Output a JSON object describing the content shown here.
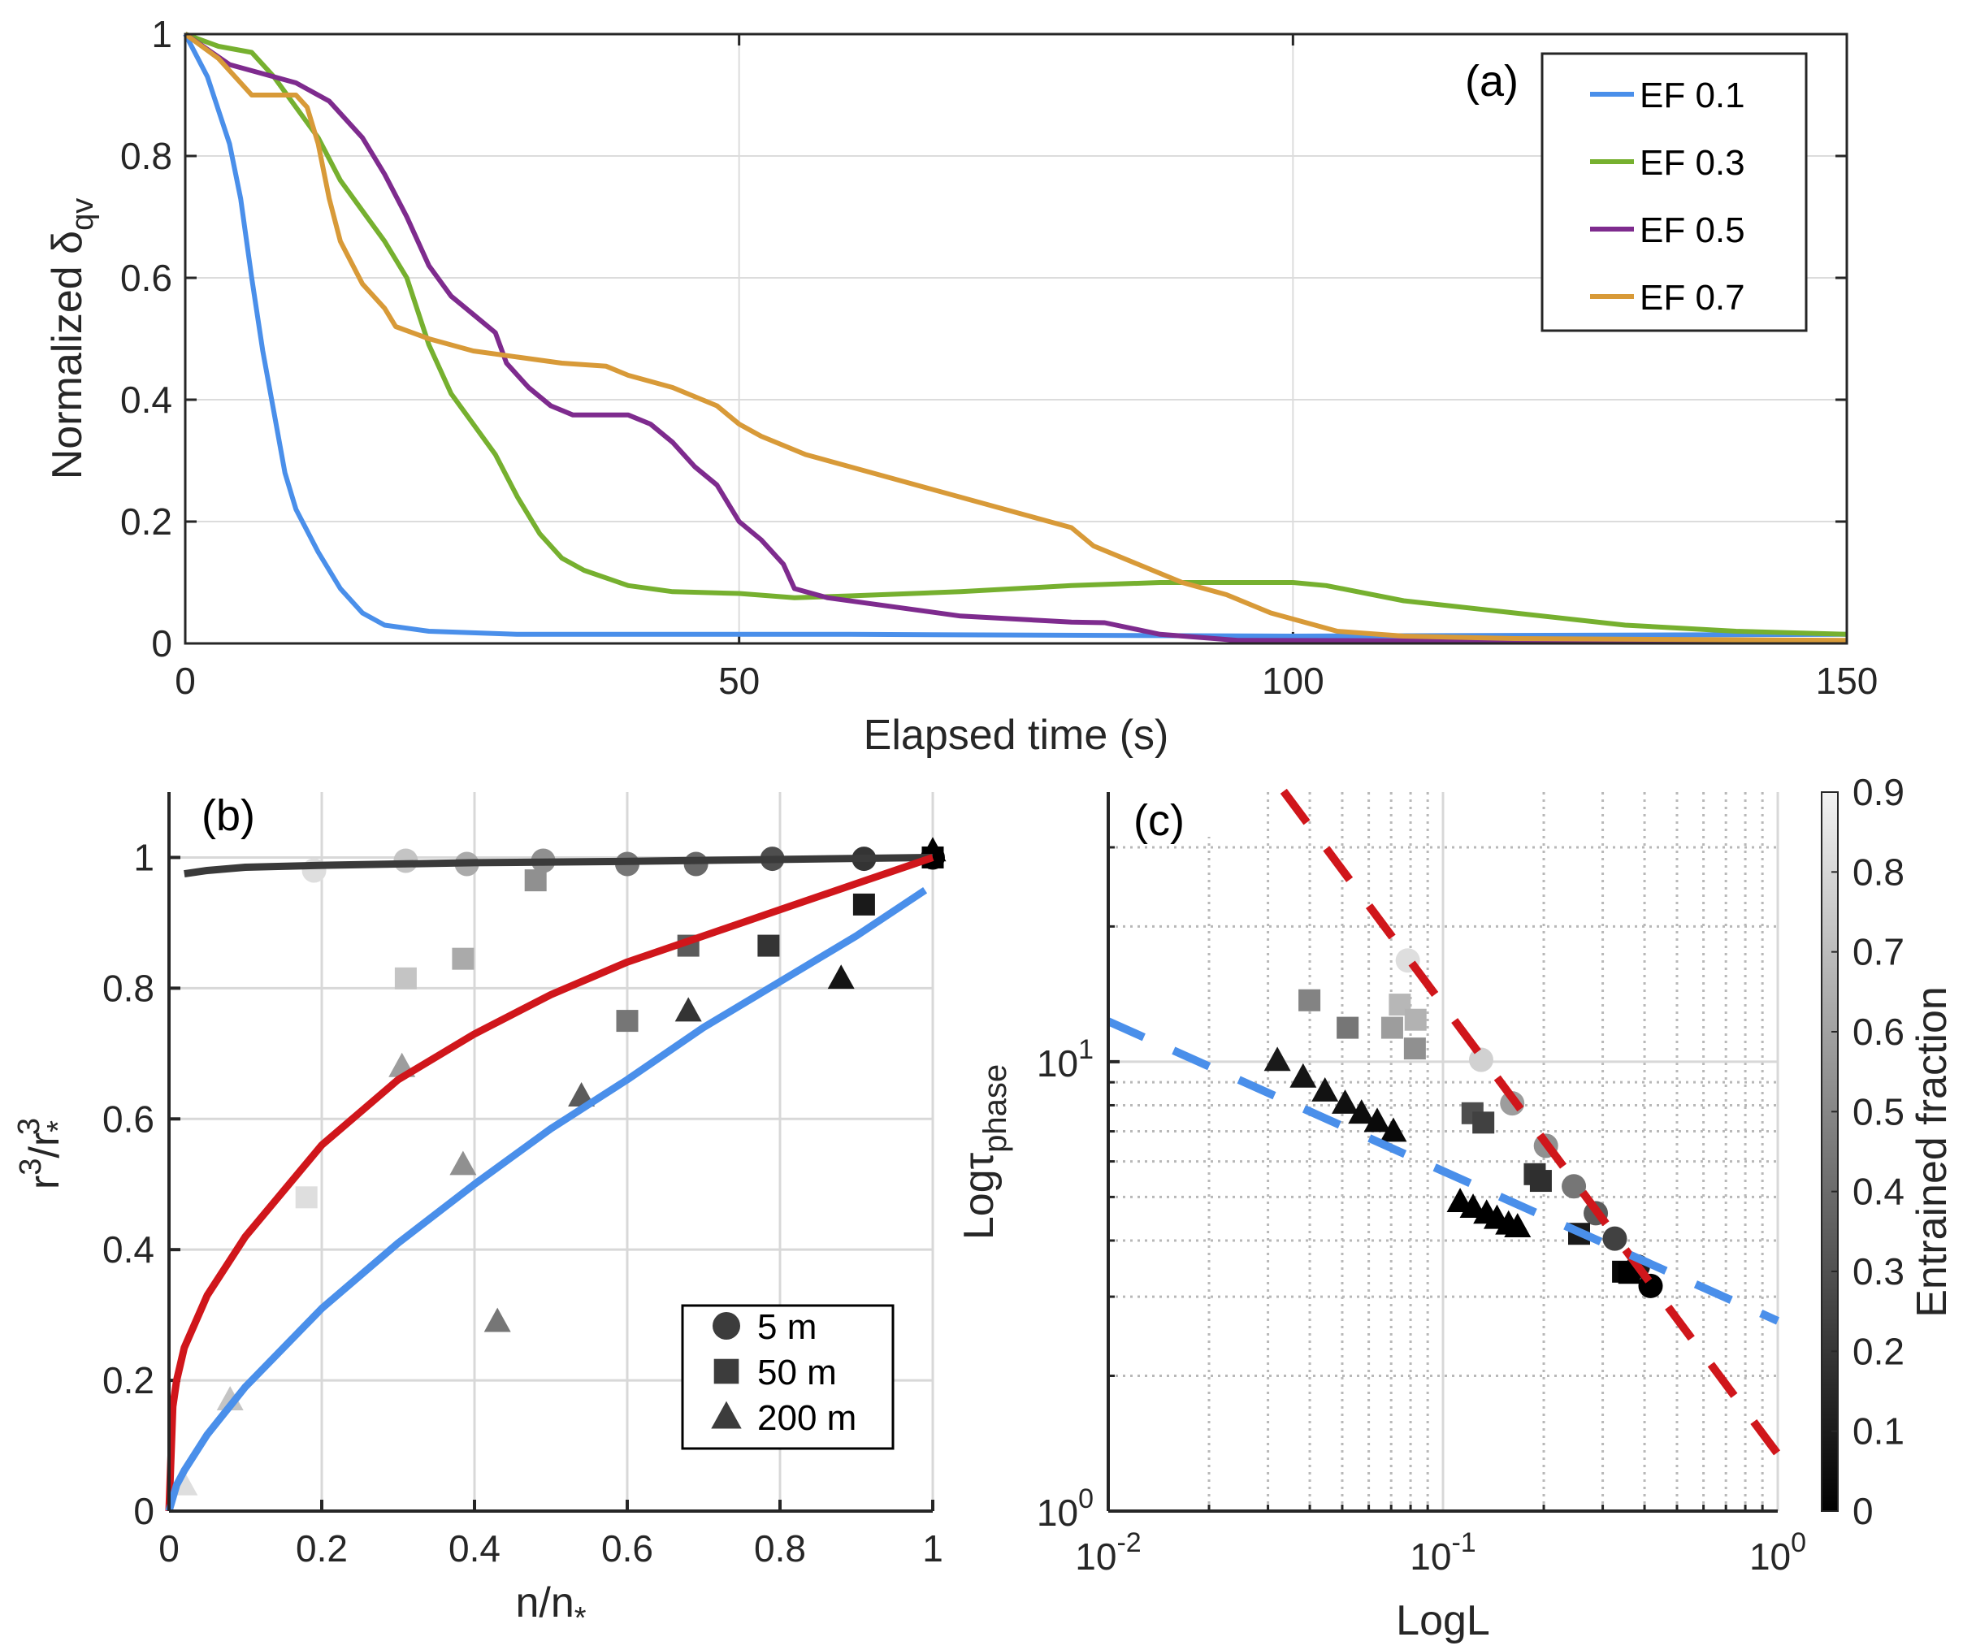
{
  "chart_data": [
    {
      "type": "line",
      "panel_label": "(a)",
      "xlabel": "Elapsed time (s)",
      "ylabel_main": "Normalized  δ",
      "ylabel_sub": "qv",
      "xlim": [
        0,
        150
      ],
      "ylim": [
        0,
        1
      ],
      "xticks": [
        0,
        50,
        100,
        150
      ],
      "xtick_labels": [
        "0",
        "50",
        "100",
        "150"
      ],
      "yticks": [
        0,
        0.2,
        0.4,
        0.6,
        0.8,
        1
      ],
      "ytick_labels": [
        "0",
        "0.2",
        "0.4",
        "0.6",
        "0.8",
        "1"
      ],
      "grid": true,
      "legend_position": "top-right",
      "series": [
        {
          "name": "EF 0.1",
          "color": "#4A8FEA",
          "x": [
            0,
            2,
            4,
            5,
            6,
            7,
            8,
            9,
            10,
            12,
            14,
            16,
            18,
            22,
            30,
            60,
            100,
            150
          ],
          "y": [
            1,
            0.93,
            0.82,
            0.73,
            0.6,
            0.48,
            0.38,
            0.28,
            0.22,
            0.15,
            0.09,
            0.05,
            0.03,
            0.02,
            0.015,
            0.015,
            0.012,
            0.015
          ]
        },
        {
          "name": "EF 0.3",
          "color": "#76B02F",
          "x": [
            0,
            3,
            6,
            8,
            10,
            12,
            14,
            16,
            18,
            20,
            22,
            24,
            26,
            28,
            30,
            32,
            34,
            36,
            40,
            44,
            50,
            55,
            60,
            70,
            80,
            88,
            100,
            103,
            110,
            120,
            130,
            140,
            150
          ],
          "y": [
            1,
            0.98,
            0.97,
            0.93,
            0.88,
            0.83,
            0.76,
            0.71,
            0.66,
            0.6,
            0.49,
            0.41,
            0.36,
            0.31,
            0.24,
            0.18,
            0.14,
            0.12,
            0.095,
            0.085,
            0.082,
            0.075,
            0.078,
            0.085,
            0.095,
            0.1,
            0.1,
            0.095,
            0.07,
            0.05,
            0.03,
            0.02,
            0.015
          ]
        },
        {
          "name": "EF 0.5",
          "color": "#7E2B8E",
          "x": [
            0,
            4,
            8,
            10,
            13,
            16,
            18,
            20,
            22,
            24,
            26,
            28,
            29,
            31,
            33,
            35,
            40,
            42,
            44,
            46,
            48,
            50,
            52,
            54,
            55,
            58,
            62,
            70,
            80,
            83,
            88,
            95,
            150
          ],
          "y": [
            1,
            0.95,
            0.93,
            0.92,
            0.89,
            0.83,
            0.77,
            0.7,
            0.62,
            0.57,
            0.54,
            0.51,
            0.46,
            0.42,
            0.39,
            0.375,
            0.375,
            0.36,
            0.33,
            0.29,
            0.26,
            0.2,
            0.17,
            0.13,
            0.09,
            0.075,
            0.065,
            0.045,
            0.035,
            0.034,
            0.015,
            0.005,
            0.003
          ]
        },
        {
          "name": "EF 0.7",
          "color": "#D89A38",
          "x": [
            0,
            3,
            5,
            6,
            8,
            10,
            11,
            12,
            13,
            14,
            16,
            18,
            19,
            22,
            26,
            30,
            34,
            38,
            40,
            44,
            48,
            50,
            52,
            56,
            60,
            64,
            70,
            76,
            80,
            82,
            86,
            90,
            94,
            98,
            104,
            110,
            120,
            150
          ],
          "y": [
            1,
            0.96,
            0.92,
            0.9,
            0.9,
            0.9,
            0.88,
            0.82,
            0.73,
            0.66,
            0.59,
            0.55,
            0.52,
            0.5,
            0.48,
            0.47,
            0.46,
            0.455,
            0.44,
            0.42,
            0.39,
            0.36,
            0.34,
            0.31,
            0.29,
            0.27,
            0.24,
            0.21,
            0.19,
            0.16,
            0.13,
            0.1,
            0.08,
            0.05,
            0.02,
            0.012,
            0.008,
            0.005
          ]
        }
      ]
    },
    {
      "type": "scatter",
      "panel_label": "(b)",
      "xlabel_main": "n/n",
      "xlabel_sub": "*",
      "ylabel_main": "r",
      "ylabel_sup1": "3",
      "ylabel_mid": "/r",
      "ylabel_sub": "*",
      "ylabel_sup2": "3",
      "xlim": [
        0,
        1
      ],
      "ylim": [
        0,
        1.1
      ],
      "xticks": [
        0,
        0.2,
        0.4,
        0.6,
        0.8,
        1
      ],
      "xtick_labels": [
        "0",
        "0.2",
        "0.4",
        "0.6",
        "0.8",
        "1"
      ],
      "yticks": [
        0,
        0.2,
        0.4,
        0.6,
        0.8,
        1
      ],
      "ytick_labels": [
        "0",
        "0.2",
        "0.4",
        "0.6",
        "0.8",
        "1"
      ],
      "grid": true,
      "legend_position": "bottom-right",
      "legend": [
        {
          "label": "5 m",
          "marker": "circle"
        },
        {
          "label": "50 m",
          "marker": "square"
        },
        {
          "label": "200 m",
          "marker": "triangle"
        }
      ],
      "lines": [
        {
          "name": "fit-dark",
          "color": "#3a3a3a",
          "x": [
            0.02,
            0.05,
            0.1,
            0.2,
            0.4,
            0.6,
            0.8,
            1.0
          ],
          "y": [
            0.975,
            0.98,
            0.985,
            0.988,
            0.992,
            0.994,
            0.997,
            1.0
          ]
        },
        {
          "name": "fit-red",
          "color": "#D0161B",
          "x": [
            0,
            0.005,
            0.01,
            0.02,
            0.05,
            0.1,
            0.2,
            0.3,
            0.4,
            0.5,
            0.6,
            0.7,
            0.8,
            0.9,
            1.0
          ],
          "y": [
            0,
            0.16,
            0.2,
            0.25,
            0.33,
            0.42,
            0.56,
            0.66,
            0.73,
            0.79,
            0.84,
            0.88,
            0.92,
            0.96,
            1.0
          ]
        },
        {
          "name": "fit-blue",
          "color": "#4A8FEA",
          "x": [
            0,
            0.01,
            0.02,
            0.05,
            0.1,
            0.2,
            0.3,
            0.4,
            0.5,
            0.6,
            0.7,
            0.8,
            0.9,
            0.99
          ],
          "y": [
            0,
            0.04,
            0.062,
            0.117,
            0.19,
            0.31,
            0.41,
            0.5,
            0.585,
            0.66,
            0.74,
            0.81,
            0.88,
            0.95
          ]
        }
      ],
      "points": [
        {
          "series": "5 m",
          "marker": "circle",
          "x": 0.19,
          "y": 0.98,
          "ef": 0.85
        },
        {
          "series": "5 m",
          "marker": "circle",
          "x": 0.31,
          "y": 0.995,
          "ef": 0.75
        },
        {
          "series": "5 m",
          "marker": "circle",
          "x": 0.39,
          "y": 0.99,
          "ef": 0.65
        },
        {
          "series": "5 m",
          "marker": "circle",
          "x": 0.49,
          "y": 0.995,
          "ef": 0.55
        },
        {
          "series": "5 m",
          "marker": "circle",
          "x": 0.6,
          "y": 0.99,
          "ef": 0.45
        },
        {
          "series": "5 m",
          "marker": "circle",
          "x": 0.69,
          "y": 0.99,
          "ef": 0.4
        },
        {
          "series": "5 m",
          "marker": "circle",
          "x": 0.79,
          "y": 0.998,
          "ef": 0.3
        },
        {
          "series": "5 m",
          "marker": "circle",
          "x": 0.91,
          "y": 0.998,
          "ef": 0.2
        },
        {
          "series": "5 m",
          "marker": "circle",
          "x": 1.0,
          "y": 1.0,
          "ef": 0.05
        },
        {
          "series": "50 m",
          "marker": "square",
          "x": 0.18,
          "y": 0.48,
          "ef": 0.85
        },
        {
          "series": "50 m",
          "marker": "square",
          "x": 0.31,
          "y": 0.815,
          "ef": 0.75
        },
        {
          "series": "50 m",
          "marker": "square",
          "x": 0.385,
          "y": 0.845,
          "ef": 0.65
        },
        {
          "series": "50 m",
          "marker": "square",
          "x": 0.48,
          "y": 0.965,
          "ef": 0.55
        },
        {
          "series": "50 m",
          "marker": "square",
          "x": 0.6,
          "y": 0.75,
          "ef": 0.45
        },
        {
          "series": "50 m",
          "marker": "square",
          "x": 0.68,
          "y": 0.865,
          "ef": 0.35
        },
        {
          "series": "50 m",
          "marker": "square",
          "x": 0.785,
          "y": 0.865,
          "ef": 0.2
        },
        {
          "series": "50 m",
          "marker": "square",
          "x": 0.91,
          "y": 0.928,
          "ef": 0.1
        },
        {
          "series": "50 m",
          "marker": "square",
          "x": 1.0,
          "y": 1.0,
          "ef": 0.0
        },
        {
          "series": "200 m",
          "marker": "triangle",
          "x": 0.02,
          "y": 0.04,
          "ef": 0.85
        },
        {
          "series": "200 m",
          "marker": "triangle",
          "x": 0.08,
          "y": 0.17,
          "ef": 0.75
        },
        {
          "series": "200 m",
          "marker": "triangle",
          "x": 0.305,
          "y": 0.68,
          "ef": 0.6
        },
        {
          "series": "200 m",
          "marker": "triangle",
          "x": 0.385,
          "y": 0.53,
          "ef": 0.55
        },
        {
          "series": "200 m",
          "marker": "triangle",
          "x": 0.43,
          "y": 0.29,
          "ef": 0.45
        },
        {
          "series": "200 m",
          "marker": "triangle",
          "x": 0.54,
          "y": 0.635,
          "ef": 0.35
        },
        {
          "series": "200 m",
          "marker": "triangle",
          "x": 0.68,
          "y": 0.765,
          "ef": 0.2
        },
        {
          "series": "200 m",
          "marker": "triangle",
          "x": 0.88,
          "y": 0.815,
          "ef": 0.08
        },
        {
          "series": "200 m",
          "marker": "triangle",
          "x": 1.0,
          "y": 1.01,
          "ef": 0.0
        }
      ]
    },
    {
      "type": "scatter",
      "panel_label": "(c)",
      "xscale": "log",
      "yscale": "log",
      "xlabel": "LogL",
      "ylabel_main": "Logτ",
      "ylabel_sub": "phase",
      "xlim": [
        0.01,
        1
      ],
      "ylim": [
        1,
        40
      ],
      "xticks": [
        0.01,
        0.1,
        1
      ],
      "xtick_labels": [
        {
          "base": "10",
          "exp": "-2"
        },
        {
          "base": "10",
          "exp": "-1"
        },
        {
          "base": "10",
          "exp": "0"
        }
      ],
      "yticks": [
        1,
        10
      ],
      "ytick_labels": [
        {
          "base": "10",
          "exp": "0"
        },
        {
          "base": "10",
          "exp": "1"
        }
      ],
      "grid": true,
      "colorbar": {
        "label": "Entrained fraction",
        "range": [
          0,
          0.9
        ],
        "ticks": [
          "0",
          "0.1",
          "0.2",
          "0.3",
          "0.4",
          "0.5",
          "0.6",
          "0.7",
          "0.8",
          "0.9"
        ],
        "colormap": "gray"
      },
      "lines": [
        {
          "name": "fit-red-dashed",
          "color": "#D0161B",
          "x": [
            0.0334,
            1
          ],
          "y": [
            40,
            1.34
          ]
        },
        {
          "name": "fit-blue-dashed",
          "color": "#4A8FEA",
          "x": [
            0.01,
            1
          ],
          "y": [
            12.3,
            2.65
          ]
        }
      ],
      "points": [
        {
          "marker": "circle",
          "x": 0.0785,
          "y": 16.8,
          "ef": 0.85
        },
        {
          "marker": "circle",
          "x": 0.13,
          "y": 10.1,
          "ef": 0.8
        },
        {
          "marker": "circle",
          "x": 0.161,
          "y": 8.08,
          "ef": 0.6
        },
        {
          "marker": "circle",
          "x": 0.203,
          "y": 6.5,
          "ef": 0.55
        },
        {
          "marker": "circle",
          "x": 0.246,
          "y": 5.28,
          "ef": 0.45
        },
        {
          "marker": "circle",
          "x": 0.286,
          "y": 4.6,
          "ef": 0.35
        },
        {
          "marker": "circle",
          "x": 0.326,
          "y": 4.04,
          "ef": 0.25
        },
        {
          "marker": "circle",
          "x": 0.382,
          "y": 3.5,
          "ef": 0.1
        },
        {
          "marker": "circle",
          "x": 0.417,
          "y": 3.17,
          "ef": 0.0
        },
        {
          "marker": "square",
          "x": 0.0399,
          "y": 13.7,
          "ef": 0.5
        },
        {
          "marker": "square",
          "x": 0.0519,
          "y": 11.9,
          "ef": 0.45
        },
        {
          "marker": "square",
          "x": 0.0705,
          "y": 11.9,
          "ef": 0.6
        },
        {
          "marker": "square",
          "x": 0.0743,
          "y": 13.4,
          "ef": 0.7
        },
        {
          "marker": "square",
          "x": 0.0828,
          "y": 12.4,
          "ef": 0.68
        },
        {
          "marker": "square",
          "x": 0.0824,
          "y": 10.7,
          "ef": 0.55
        },
        {
          "marker": "square",
          "x": 0.1225,
          "y": 7.68,
          "ef": 0.3
        },
        {
          "marker": "square",
          "x": 0.132,
          "y": 7.32,
          "ef": 0.25
        },
        {
          "marker": "square",
          "x": 0.188,
          "y": 5.62,
          "ef": 0.2
        },
        {
          "marker": "square",
          "x": 0.196,
          "y": 5.43,
          "ef": 0.18
        },
        {
          "marker": "square",
          "x": 0.255,
          "y": 4.14,
          "ef": 0.1
        },
        {
          "marker": "square",
          "x": 0.345,
          "y": 3.41,
          "ef": 0.03
        },
        {
          "marker": "square",
          "x": 0.36,
          "y": 3.39,
          "ef": 0.0
        },
        {
          "marker": "triangle",
          "x": 0.032,
          "y": 10.06,
          "ef": 0.1
        },
        {
          "marker": "triangle",
          "x": 0.0382,
          "y": 9.24,
          "ef": 0.08
        },
        {
          "marker": "triangle",
          "x": 0.0444,
          "y": 8.6,
          "ef": 0.07
        },
        {
          "marker": "triangle",
          "x": 0.051,
          "y": 8.08,
          "ef": 0.06
        },
        {
          "marker": "triangle",
          "x": 0.0571,
          "y": 7.68,
          "ef": 0.05
        },
        {
          "marker": "triangle",
          "x": 0.0636,
          "y": 7.36,
          "ef": 0.04
        },
        {
          "marker": "triangle",
          "x": 0.0711,
          "y": 7.0,
          "ef": 0.03
        },
        {
          "marker": "triangle",
          "x": 0.1125,
          "y": 4.88,
          "ef": 0.0
        },
        {
          "marker": "triangle",
          "x": 0.123,
          "y": 4.74,
          "ef": 0.0
        },
        {
          "marker": "triangle",
          "x": 0.135,
          "y": 4.6,
          "ef": 0.0
        },
        {
          "marker": "triangle",
          "x": 0.145,
          "y": 4.48,
          "ef": 0.0
        },
        {
          "marker": "triangle",
          "x": 0.157,
          "y": 4.35,
          "ef": 0.0
        },
        {
          "marker": "triangle",
          "x": 0.167,
          "y": 4.29,
          "ef": 0.0
        }
      ]
    }
  ]
}
